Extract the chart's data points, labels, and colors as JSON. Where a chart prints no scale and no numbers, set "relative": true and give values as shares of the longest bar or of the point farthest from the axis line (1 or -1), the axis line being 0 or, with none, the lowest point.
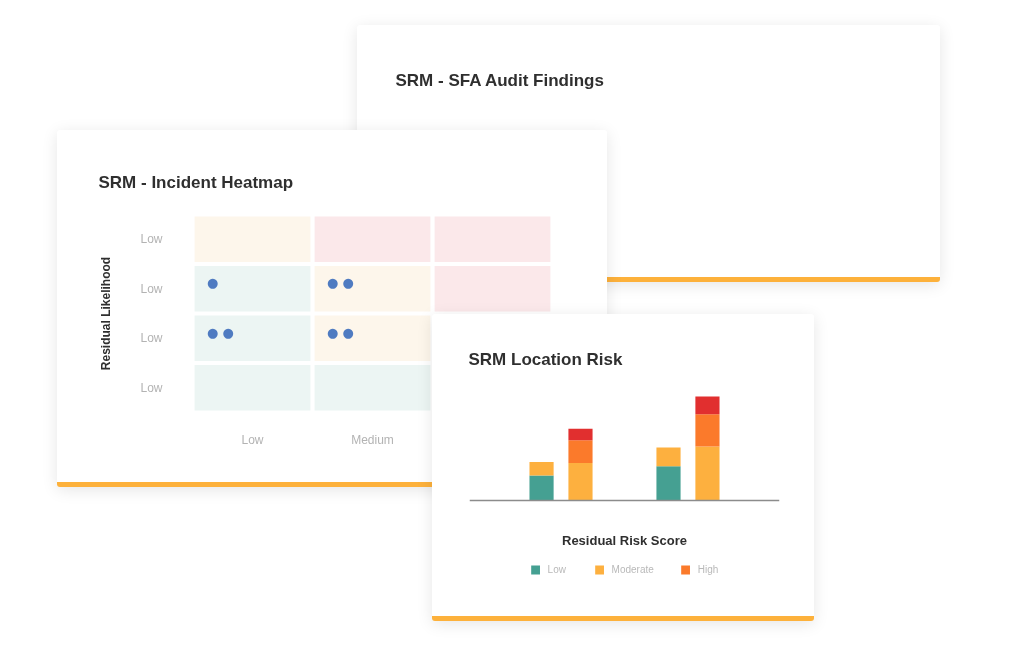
{
  "chart_data": [
    {
      "type": "other",
      "title": "SRM - SFA Audit Findings"
    },
    {
      "type": "heatmap",
      "title": "SRM - Incident Heatmap",
      "ylabel": "Residual Likelihood",
      "categories": [
        "Low",
        "Medium",
        null
      ],
      "y_categories": [
        "Low",
        "Low",
        "Low",
        "Low"
      ],
      "cells": [
        [
          null,
          null,
          null
        ],
        [
          null,
          null,
          null
        ],
        [
          null,
          null,
          null
        ],
        [
          null,
          null,
          null
        ]
      ],
      "cell_labels": [
        [
          null,
          null,
          null
        ],
        [
          "●",
          "● ●",
          null
        ],
        [
          "● ●",
          "● ●",
          null
        ],
        [
          null,
          null,
          null
        ]
      ],
      "colors": [
        [
          "#fdf6eb",
          "#fbe8ea",
          "#fbe8ea"
        ],
        [
          "#ecf5f3",
          "#fdf6eb",
          "#fbe8ea"
        ],
        [
          "#ecf5f3",
          "#fdf6eb",
          null
        ],
        [
          "#ecf5f3",
          "#ecf5f3",
          null
        ]
      ],
      "color": "#4f7bc1"
    },
    {
      "type": "bar",
      "title": "SRM Location Risk",
      "xlabel": "Residual Risk Score",
      "categories": [
        null,
        null,
        null,
        null
      ],
      "relative": true,
      "stacked": true,
      "legend": "bottom",
      "series": [
        {
          "name": "Low",
          "color": "#45a092",
          "values": [
            0.24,
            null,
            0.33,
            null
          ]
        },
        {
          "name": "Moderate",
          "color": "#fdb03f",
          "values": [
            0.13,
            0.36,
            0.18,
            0.52
          ]
        },
        {
          "name": "High",
          "color": "#fb7a2b",
          "values": [
            null,
            0.22,
            null,
            0.31
          ]
        },
        {
          "color": "#e12f2f",
          "values": [
            null,
            0.11,
            null,
            0.17
          ]
        }
      ]
    }
  ]
}
